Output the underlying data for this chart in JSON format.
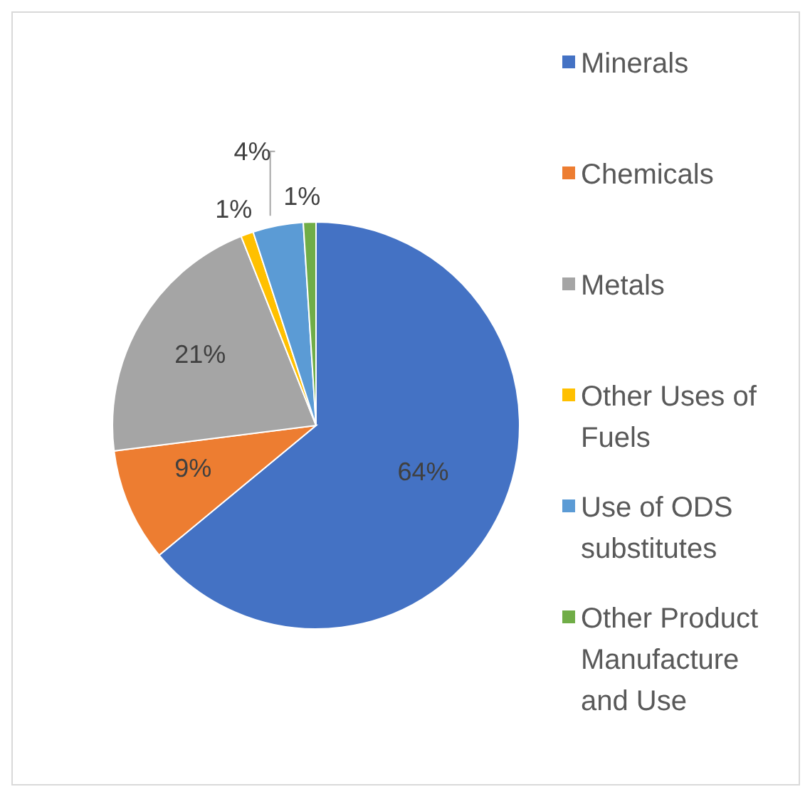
{
  "chart_data": {
    "type": "pie",
    "categories": [
      "Minerals",
      "Chemicals",
      "Metals",
      "Other Uses of Fuels",
      "Use of ODS substitutes",
      "Other Product Manufacture and Use"
    ],
    "values": [
      64,
      9,
      21,
      1,
      4,
      1
    ],
    "colors": [
      "#4472c4",
      "#ed7d31",
      "#a5a5a5",
      "#ffc000",
      "#5b9bd5",
      "#70ad47"
    ],
    "value_labels": [
      "64%",
      "9%",
      "21%",
      "1%",
      "4%",
      "1%"
    ],
    "legend": "right"
  }
}
